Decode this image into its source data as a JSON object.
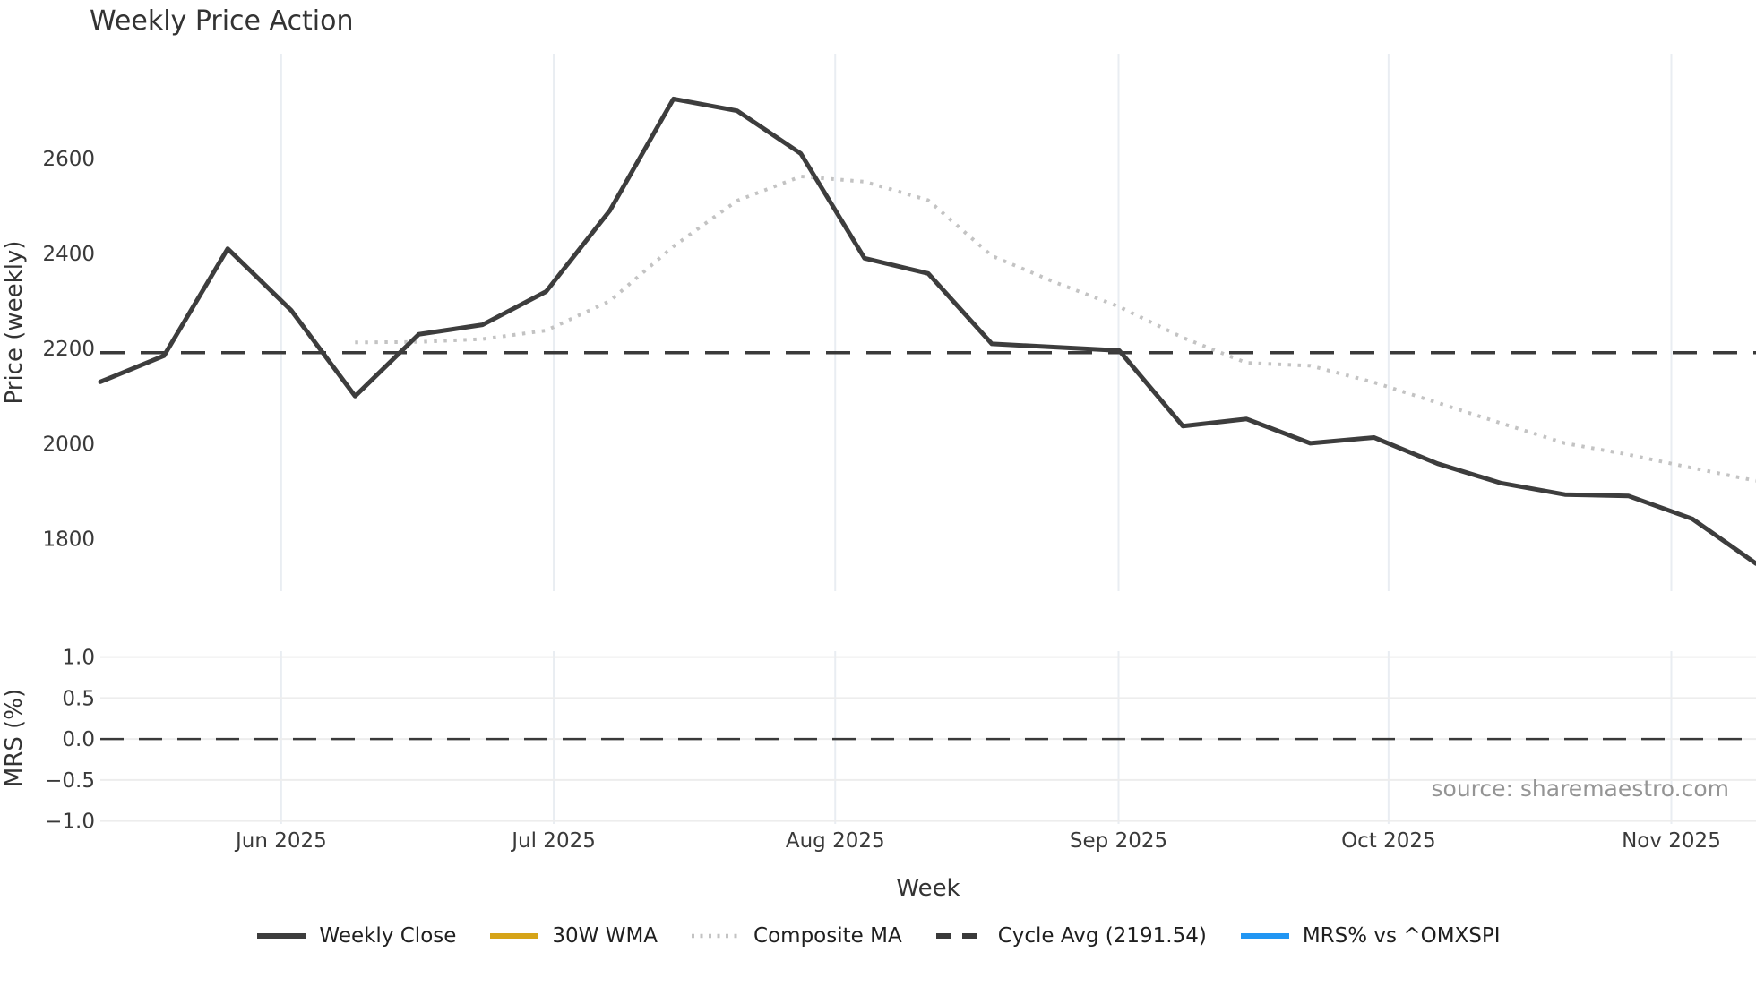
{
  "source": "source: sharemaestro.com",
  "style": {
    "background": "#ffffff",
    "grid_vertical": "#e9edf2",
    "grid_horizontal": "#ededed",
    "tick_color": "#3a3a3a",
    "title_color": "#333333",
    "source_color": "#949494"
  },
  "legend": {
    "items": [
      {
        "label": "Weekly Close",
        "color": "#3d3d3d",
        "style": "solid"
      },
      {
        "label": "30W WMA",
        "color": "#d6a418",
        "style": "solid"
      },
      {
        "label": "Composite MA",
        "color": "#c3c3c3",
        "style": "dotted"
      },
      {
        "label": "Cycle Avg (2191.54)",
        "color": "#3a3a3a",
        "style": "dashed"
      },
      {
        "label": "MRS% vs ^OMXSPI",
        "color": "#2196f3",
        "style": "solid"
      }
    ]
  },
  "chart_data": [
    {
      "type": "line",
      "title": "Weekly Price Action",
      "xlabel": "Week",
      "ylabel": "Price (weekly)",
      "x_description": "27 weekly points (weekly close), mid-May 2025 to mid-November 2025",
      "n_weeks": 27,
      "x_tick_labels": [
        "Jun 2025",
        "Jul 2025",
        "Aug 2025",
        "Sep 2025",
        "Oct 2025",
        "Nov 2025"
      ],
      "x_tick_positions_weeks": [
        2.84,
        7.12,
        11.54,
        15.99,
        20.23,
        24.67
      ],
      "y_ticks": [
        1800,
        2000,
        2200,
        2400,
        2600
      ],
      "ylim": [
        1690,
        2820
      ],
      "grid": "vertical-months",
      "legend_position": "below-figure",
      "series": [
        {
          "name": "Weekly Close",
          "color": "#3d3d3d",
          "style": "solid",
          "values": [
            2130,
            2185,
            2410,
            2280,
            2100,
            2230,
            2250,
            2320,
            2490,
            2725,
            2700,
            2610,
            2390,
            2358,
            2210,
            2203,
            2196,
            2037,
            2052,
            2001,
            2013,
            1958,
            1917,
            1893,
            1890,
            1842,
            1748
          ]
        },
        {
          "name": "30W WMA",
          "color": "#d6a418",
          "style": "solid",
          "values": [],
          "note": "present in legend only; no visible curve in plot area"
        },
        {
          "name": "Composite MA",
          "color": "#c3c3c3",
          "style": "dotted",
          "values": [
            null,
            null,
            null,
            null,
            2213,
            2214,
            2220,
            2238,
            2300,
            2415,
            2511,
            2562,
            2551,
            2512,
            2395,
            2339,
            2288,
            2223,
            2170,
            2164,
            2129,
            2086,
            2043,
            2001,
            1977,
            1949,
            1922
          ]
        },
        {
          "name": "Cycle Avg (2191.54)",
          "color": "#3a3a3a",
          "style": "dashed",
          "constant": 2191.54
        }
      ]
    },
    {
      "type": "line",
      "ylabel": "MRS (%)",
      "y_ticks": [
        1.0,
        0.5,
        0.0,
        -0.5,
        -1.0
      ],
      "y_tick_labels": [
        "1.0",
        "0.5",
        "0.0",
        "−0.5",
        "−1.0"
      ],
      "ylim": [
        -1.08,
        1.17
      ],
      "zero_line": {
        "style": "dashed",
        "color": "#3a3a3a",
        "value": 0.0
      },
      "series": [
        {
          "name": "MRS% vs ^OMXSPI",
          "color": "#2196f3",
          "constant": 0.0,
          "note": "flat at zero; hidden beneath dashed zero reference line"
        }
      ]
    }
  ]
}
